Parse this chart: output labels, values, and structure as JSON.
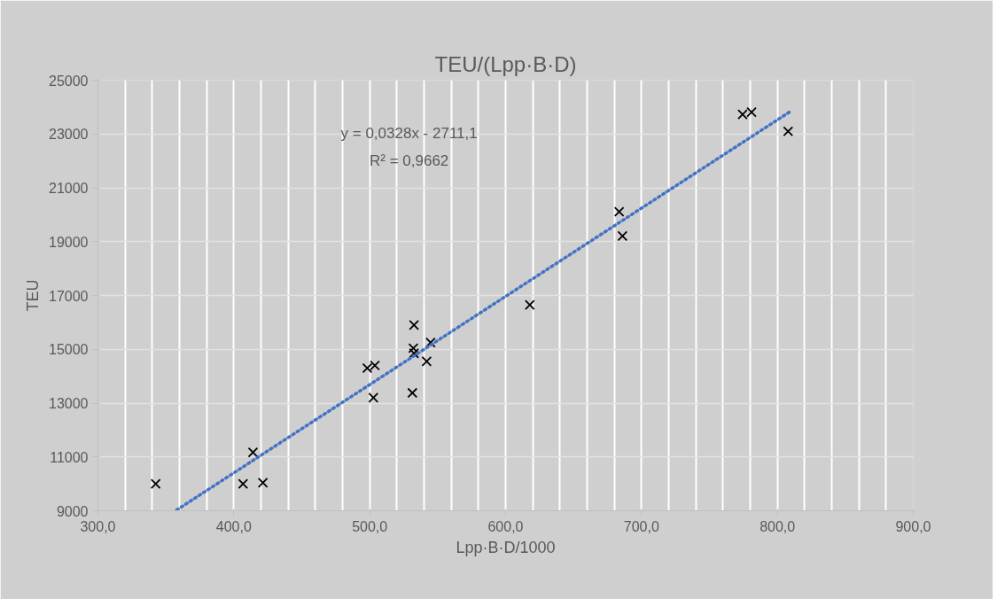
{
  "chart_data": {
    "type": "scatter",
    "title": "TEU/(Lpp·B·D)",
    "xlabel": "Lpp·B·D/1000",
    "ylabel": "TEU",
    "xlim": [
      300,
      900
    ],
    "ylim": [
      9000,
      25000
    ],
    "xticks": [
      {
        "value": 300,
        "label": "300,0"
      },
      {
        "value": 400,
        "label": "400,0"
      },
      {
        "value": 500,
        "label": "500,0"
      },
      {
        "value": 600,
        "label": "600,0"
      },
      {
        "value": 700,
        "label": "700,0"
      },
      {
        "value": 800,
        "label": "800,0"
      },
      {
        "value": 900,
        "label": "900,0"
      }
    ],
    "yticks": [
      9000,
      11000,
      13000,
      15000,
      17000,
      19000,
      21000,
      23000,
      25000
    ],
    "grid": true,
    "marker": "cross",
    "annotations": [
      "y = 0,0328x - 2711,1",
      "R² = 0,9662"
    ],
    "series": [
      {
        "color": "#000000",
        "x": [
          342.5,
          406.8,
          421.4,
          414.1,
          498.2,
          503.8,
          502.7,
          532.6,
          532.1,
          532.6,
          544.8,
          541.9,
          531.4,
          617.8,
          683.6,
          686,
          774.4,
          781,
          807.9
        ],
        "values": [
          10000,
          10000,
          10040,
          11170,
          14300,
          14400,
          13200,
          15900,
          15040,
          14850,
          15250,
          14550,
          13380,
          16650,
          20110,
          19210,
          23730,
          23810,
          23100
        ]
      },
      {
        "type": "line",
        "color": "#4472c4",
        "marker": "none",
        "line_style": "dotted",
        "x": [
          358,
          809
        ],
        "values": [
          9030,
          23820
        ]
      }
    ]
  }
}
